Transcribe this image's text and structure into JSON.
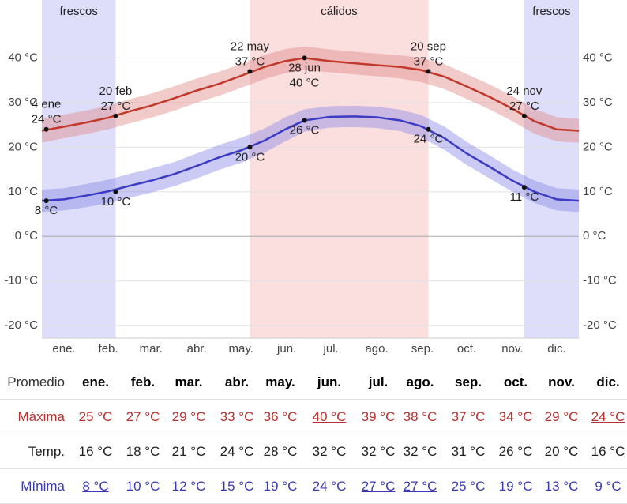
{
  "chart_data": {
    "type": "line",
    "x": [
      1,
      16,
      32,
      46,
      60,
      75,
      91,
      106,
      121,
      136,
      152,
      166,
      179,
      196,
      213,
      228,
      244,
      258,
      274,
      289,
      305,
      320,
      335,
      350,
      365
    ],
    "xlim": [
      1,
      365
    ],
    "xticks": [
      {
        "value": 16,
        "label": "ene."
      },
      {
        "value": 46,
        "label": "feb."
      },
      {
        "value": 75,
        "label": "mar."
      },
      {
        "value": 106,
        "label": "abr."
      },
      {
        "value": 136,
        "label": "may."
      },
      {
        "value": 167,
        "label": "jun."
      },
      {
        "value": 197,
        "label": "jul."
      },
      {
        "value": 228,
        "label": "ago."
      },
      {
        "value": 259,
        "label": "sep."
      },
      {
        "value": 289,
        "label": "oct."
      },
      {
        "value": 320,
        "label": "nov."
      },
      {
        "value": 350,
        "label": "dic."
      }
    ],
    "ylim": [
      -22.8,
      53
    ],
    "yticks": [
      {
        "value": -20,
        "label": "-20 °C"
      },
      {
        "value": -10,
        "label": "-10 °C"
      },
      {
        "value": 0,
        "label": "0 °C"
      },
      {
        "value": 10,
        "label": "10 °C"
      },
      {
        "value": 20,
        "label": "20 °C"
      },
      {
        "value": 30,
        "label": "30 °C"
      },
      {
        "value": 40,
        "label": "40 °C"
      }
    ],
    "grid": true,
    "series": [
      {
        "color": "#c0392b",
        "band_color": "#e08a8a",
        "values": [
          23.7,
          24.6,
          25.6,
          26.6,
          28,
          29.3,
          31,
          32.7,
          34.2,
          36,
          38,
          39.3,
          40,
          39.3,
          38.8,
          38.4,
          38,
          37.3,
          35.8,
          33.6,
          31.2,
          28.6,
          25.8,
          24,
          23.7
        ],
        "band_low": [
          21,
          22,
          23,
          24,
          25.3,
          26.6,
          28.2,
          30,
          31.5,
          33.3,
          35.3,
          36.6,
          37.3,
          36.8,
          36.3,
          35.9,
          35.4,
          34.6,
          33,
          30.8,
          28.4,
          25.8,
          23,
          21.3,
          21
        ],
        "band_high": [
          26.4,
          27.3,
          28.3,
          29.3,
          30.7,
          32,
          33.7,
          35.4,
          36.9,
          38.7,
          40.7,
          42,
          42.6,
          41.9,
          41.4,
          41,
          40.6,
          40,
          38.6,
          36.4,
          34,
          31.4,
          28.6,
          26.7,
          26.4
        ]
      },
      {
        "color": "#3b3bc4",
        "band_color": "#8a8ae6",
        "values": [
          8,
          8.3,
          9.2,
          10.1,
          11.3,
          12.5,
          14,
          15.8,
          17.7,
          19.3,
          21.5,
          24,
          26,
          26.8,
          26.9,
          26.7,
          26,
          24.7,
          22,
          18.6,
          15.5,
          12.5,
          10,
          8.3,
          8
        ],
        "band_low": [
          5.5,
          5.8,
          6.6,
          7.5,
          8.6,
          9.8,
          11.3,
          13,
          14.9,
          16.5,
          18.8,
          21.3,
          23.5,
          24.4,
          24.5,
          24.3,
          23.6,
          22.2,
          19.4,
          16,
          12.9,
          10,
          7.5,
          5.8,
          5.5
        ],
        "band_high": [
          10.5,
          10.8,
          11.8,
          12.7,
          14,
          15.2,
          16.7,
          18.6,
          20.5,
          22.1,
          24.2,
          26.7,
          28.5,
          29.2,
          29.3,
          29.1,
          28.4,
          27.2,
          24.6,
          21.2,
          18.1,
          15,
          12.5,
          10.8,
          10.5
        ]
      }
    ],
    "shaded": [
      {
        "label": "frescos",
        "start": 1,
        "end": 51,
        "color": "#dedefa"
      },
      {
        "label": "cálidos",
        "start": 142,
        "end": 263,
        "color": "#fbdede"
      },
      {
        "label": "frescos",
        "start": 328,
        "end": 365,
        "color": "#dedefa"
      }
    ],
    "annotations": [
      {
        "series": 0,
        "x": 4,
        "y": 24,
        "date": "4 ene",
        "label": "24 °C",
        "placement": "above"
      },
      {
        "series": 0,
        "x": 51,
        "y": 27,
        "date": "20 feb",
        "label": "27 °C",
        "placement": "above"
      },
      {
        "series": 0,
        "x": 142,
        "y": 37,
        "date": "22 may",
        "label": "37 °C",
        "placement": "above"
      },
      {
        "series": 0,
        "x": 179,
        "y": 40,
        "date": "28 jun",
        "label": "40 °C",
        "placement": "below"
      },
      {
        "series": 0,
        "x": 263,
        "y": 37,
        "date": "20 sep",
        "label": "37 °C",
        "placement": "above"
      },
      {
        "series": 0,
        "x": 328,
        "y": 27,
        "date": "24 nov",
        "label": "27 °C",
        "placement": "above"
      },
      {
        "series": 1,
        "x": 4,
        "y": 8,
        "label": "8 °C",
        "placement": "below"
      },
      {
        "series": 1,
        "x": 51,
        "y": 10,
        "label": "10 °C",
        "placement": "below"
      },
      {
        "series": 1,
        "x": 142,
        "y": 20,
        "label": "20 °C",
        "placement": "below"
      },
      {
        "series": 1,
        "x": 179,
        "y": 26,
        "label": "26 °C",
        "placement": "below"
      },
      {
        "series": 1,
        "x": 263,
        "y": 24,
        "label": "24 °C",
        "placement": "below"
      },
      {
        "series": 1,
        "x": 328,
        "y": 11,
        "label": "11 °C",
        "placement": "below"
      }
    ]
  },
  "table": {
    "header": [
      "Promedio",
      "ene.",
      "feb.",
      "mar.",
      "abr.",
      "may.",
      "jun.",
      "jul.",
      "ago.",
      "sep.",
      "oct.",
      "nov.",
      "dic."
    ],
    "rows": [
      {
        "label": "Máxima",
        "cells": [
          "25 °C",
          "27 °C",
          "29 °C",
          "33 °C",
          "36 °C",
          "40 °C",
          "39 °C",
          "38 °C",
          "37 °C",
          "34 °C",
          "29 °C",
          "24 °C"
        ],
        "underline": [
          5,
          11
        ]
      },
      {
        "label": "Temp.",
        "cells": [
          "16 °C",
          "18 °C",
          "21 °C",
          "24 °C",
          "28 °C",
          "32 °C",
          "32 °C",
          "32 °C",
          "31 °C",
          "26 °C",
          "20 °C",
          "16 °C"
        ],
        "underline": [
          0,
          5,
          6,
          7,
          11
        ]
      },
      {
        "label": "Mínima",
        "cells": [
          "8 °C",
          "10 °C",
          "12 °C",
          "15 °C",
          "19 °C",
          "24 °C",
          "27 °C",
          "27 °C",
          "25 °C",
          "19 °C",
          "13 °C",
          "9 °C"
        ],
        "underline": [
          0,
          6,
          7
        ]
      }
    ]
  }
}
